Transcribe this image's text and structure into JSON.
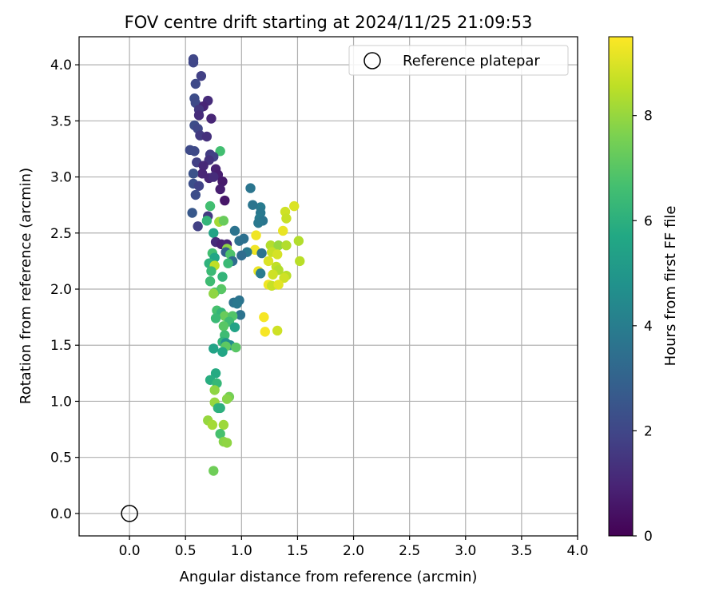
{
  "chart_data": {
    "type": "scatter",
    "title": "FOV centre drift starting at 2024/11/25 21:09:53",
    "xlabel": "Angular distance from reference (arcmin)",
    "ylabel": "Rotation from reference (arcmin)",
    "xlim": [
      -0.45,
      4.0
    ],
    "ylim": [
      -0.2,
      4.25
    ],
    "xticks": [
      "0.0",
      "0.5",
      "1.0",
      "1.5",
      "2.0",
      "2.5",
      "3.0",
      "3.5",
      "4.0"
    ],
    "yticks": [
      "0.0",
      "0.5",
      "1.0",
      "1.5",
      "2.0",
      "2.5",
      "3.0",
      "3.5",
      "4.0"
    ],
    "grid": true,
    "legend": {
      "placement": "top-right",
      "entries": [
        "Reference platepar"
      ]
    },
    "reference_point": {
      "x": 0.0,
      "y": 0.0
    },
    "colorbar": {
      "label": "Hours from first FF file",
      "range": [
        0,
        9.5
      ],
      "ticks": [
        "0",
        "2",
        "4",
        "6",
        "8"
      ],
      "colormap": "viridis"
    },
    "points": [
      {
        "x": 0.57,
        "y": 4.05,
        "h": 2.0
      },
      {
        "x": 0.57,
        "y": 4.02,
        "h": 2.0
      },
      {
        "x": 0.64,
        "y": 3.9,
        "h": 1.8
      },
      {
        "x": 0.59,
        "y": 3.83,
        "h": 2.1
      },
      {
        "x": 0.58,
        "y": 3.7,
        "h": 2.2
      },
      {
        "x": 0.7,
        "y": 3.68,
        "h": 1.2
      },
      {
        "x": 0.59,
        "y": 3.66,
        "h": 2.1
      },
      {
        "x": 0.66,
        "y": 3.63,
        "h": 1.0
      },
      {
        "x": 0.62,
        "y": 3.6,
        "h": 1.5
      },
      {
        "x": 0.62,
        "y": 3.55,
        "h": 1.2
      },
      {
        "x": 0.73,
        "y": 3.52,
        "h": 1.0
      },
      {
        "x": 0.58,
        "y": 3.46,
        "h": 2.2
      },
      {
        "x": 0.61,
        "y": 3.43,
        "h": 2.0
      },
      {
        "x": 0.63,
        "y": 3.37,
        "h": 1.6
      },
      {
        "x": 0.69,
        "y": 3.36,
        "h": 1.3
      },
      {
        "x": 0.81,
        "y": 3.23,
        "h": 6.6
      },
      {
        "x": 0.54,
        "y": 3.24,
        "h": 2.1
      },
      {
        "x": 0.58,
        "y": 3.23,
        "h": 2.1
      },
      {
        "x": 0.72,
        "y": 3.2,
        "h": 1.7
      },
      {
        "x": 0.75,
        "y": 3.18,
        "h": 1.8
      },
      {
        "x": 0.6,
        "y": 3.13,
        "h": 1.8
      },
      {
        "x": 0.71,
        "y": 3.15,
        "h": 1.4
      },
      {
        "x": 0.66,
        "y": 3.1,
        "h": 1.1
      },
      {
        "x": 0.77,
        "y": 3.07,
        "h": 0.9
      },
      {
        "x": 0.65,
        "y": 3.03,
        "h": 1.0
      },
      {
        "x": 0.79,
        "y": 3.02,
        "h": 0.8
      },
      {
        "x": 0.57,
        "y": 3.03,
        "h": 2.4
      },
      {
        "x": 0.71,
        "y": 2.99,
        "h": 1.0
      },
      {
        "x": 0.75,
        "y": 3.0,
        "h": 1.2
      },
      {
        "x": 0.83,
        "y": 2.96,
        "h": 0.7
      },
      {
        "x": 0.57,
        "y": 2.94,
        "h": 2.3
      },
      {
        "x": 0.62,
        "y": 2.92,
        "h": 1.9
      },
      {
        "x": 0.81,
        "y": 2.89,
        "h": 0.8
      },
      {
        "x": 1.08,
        "y": 2.9,
        "h": 3.7
      },
      {
        "x": 0.59,
        "y": 2.84,
        "h": 2.2
      },
      {
        "x": 0.85,
        "y": 2.79,
        "h": 0.6
      },
      {
        "x": 1.17,
        "y": 2.73,
        "h": 3.9
      },
      {
        "x": 1.1,
        "y": 2.75,
        "h": 3.7
      },
      {
        "x": 0.72,
        "y": 2.74,
        "h": 6.6
      },
      {
        "x": 1.47,
        "y": 2.74,
        "h": 9.0
      },
      {
        "x": 0.56,
        "y": 2.68,
        "h": 2.6
      },
      {
        "x": 1.17,
        "y": 2.68,
        "h": 3.8
      },
      {
        "x": 1.39,
        "y": 2.69,
        "h": 8.8
      },
      {
        "x": 0.7,
        "y": 2.65,
        "h": 1.6
      },
      {
        "x": 1.16,
        "y": 2.63,
        "h": 3.9
      },
      {
        "x": 1.4,
        "y": 2.63,
        "h": 8.7
      },
      {
        "x": 0.69,
        "y": 2.61,
        "h": 6.2
      },
      {
        "x": 0.8,
        "y": 2.6,
        "h": 8.2
      },
      {
        "x": 0.84,
        "y": 2.61,
        "h": 7.3
      },
      {
        "x": 1.19,
        "y": 2.61,
        "h": 3.7
      },
      {
        "x": 1.15,
        "y": 2.59,
        "h": 3.8
      },
      {
        "x": 0.61,
        "y": 2.56,
        "h": 1.8
      },
      {
        "x": 1.37,
        "y": 2.52,
        "h": 9.2
      },
      {
        "x": 0.94,
        "y": 2.52,
        "h": 3.6
      },
      {
        "x": 0.75,
        "y": 2.5,
        "h": 5.5
      },
      {
        "x": 1.13,
        "y": 2.48,
        "h": 9.3
      },
      {
        "x": 1.02,
        "y": 2.45,
        "h": 3.5
      },
      {
        "x": 0.98,
        "y": 2.43,
        "h": 3.5
      },
      {
        "x": 1.51,
        "y": 2.43,
        "h": 8.4
      },
      {
        "x": 0.77,
        "y": 2.42,
        "h": 1.2
      },
      {
        "x": 0.82,
        "y": 2.4,
        "h": 0.9
      },
      {
        "x": 0.87,
        "y": 2.4,
        "h": 1.0
      },
      {
        "x": 1.26,
        "y": 2.39,
        "h": 8.4
      },
      {
        "x": 1.33,
        "y": 2.39,
        "h": 8.0
      },
      {
        "x": 1.4,
        "y": 2.39,
        "h": 8.4
      },
      {
        "x": 0.87,
        "y": 2.36,
        "h": 7.9
      },
      {
        "x": 1.12,
        "y": 2.35,
        "h": 9.3
      },
      {
        "x": 0.86,
        "y": 2.33,
        "h": 2.8
      },
      {
        "x": 1.05,
        "y": 2.33,
        "h": 3.8
      },
      {
        "x": 1.27,
        "y": 2.33,
        "h": 8.7
      },
      {
        "x": 0.74,
        "y": 2.32,
        "h": 6.6
      },
      {
        "x": 0.9,
        "y": 2.31,
        "h": 6.8
      },
      {
        "x": 1.0,
        "y": 2.3,
        "h": 3.4
      },
      {
        "x": 1.18,
        "y": 2.32,
        "h": 3.6
      },
      {
        "x": 1.32,
        "y": 2.31,
        "h": 8.9
      },
      {
        "x": 0.76,
        "y": 2.28,
        "h": 5.6
      },
      {
        "x": 0.92,
        "y": 2.25,
        "h": 3.4
      },
      {
        "x": 1.24,
        "y": 2.25,
        "h": 9.0
      },
      {
        "x": 1.52,
        "y": 2.25,
        "h": 8.5
      },
      {
        "x": 0.71,
        "y": 2.23,
        "h": 6.1
      },
      {
        "x": 0.88,
        "y": 2.23,
        "h": 6.4
      },
      {
        "x": 0.76,
        "y": 2.21,
        "h": 8.6
      },
      {
        "x": 1.31,
        "y": 2.2,
        "h": 8.6
      },
      {
        "x": 1.33,
        "y": 2.17,
        "h": 8.4
      },
      {
        "x": 1.15,
        "y": 2.16,
        "h": 9.2
      },
      {
        "x": 0.73,
        "y": 2.16,
        "h": 6.4
      },
      {
        "x": 1.17,
        "y": 2.14,
        "h": 3.9
      },
      {
        "x": 1.28,
        "y": 2.13,
        "h": 8.8
      },
      {
        "x": 1.4,
        "y": 2.12,
        "h": 8.5
      },
      {
        "x": 0.83,
        "y": 2.11,
        "h": 6.2
      },
      {
        "x": 1.38,
        "y": 2.1,
        "h": 8.8
      },
      {
        "x": 0.72,
        "y": 2.07,
        "h": 6.5
      },
      {
        "x": 1.24,
        "y": 2.04,
        "h": 9.3
      },
      {
        "x": 1.27,
        "y": 2.03,
        "h": 8.7
      },
      {
        "x": 1.33,
        "y": 2.04,
        "h": 9.1
      },
      {
        "x": 0.82,
        "y": 2.0,
        "h": 7.0
      },
      {
        "x": 0.76,
        "y": 1.97,
        "h": 6.8
      },
      {
        "x": 0.75,
        "y": 1.96,
        "h": 7.9
      },
      {
        "x": 0.98,
        "y": 1.9,
        "h": 3.6
      },
      {
        "x": 0.93,
        "y": 1.88,
        "h": 3.6
      },
      {
        "x": 0.96,
        "y": 1.87,
        "h": 3.8
      },
      {
        "x": 0.78,
        "y": 1.81,
        "h": 6.7
      },
      {
        "x": 0.82,
        "y": 1.79,
        "h": 6.2
      },
      {
        "x": 0.99,
        "y": 1.77,
        "h": 3.6
      },
      {
        "x": 0.85,
        "y": 1.76,
        "h": 7.3
      },
      {
        "x": 0.92,
        "y": 1.76,
        "h": 6.9
      },
      {
        "x": 0.77,
        "y": 1.74,
        "h": 6.4
      },
      {
        "x": 1.2,
        "y": 1.75,
        "h": 9.4
      },
      {
        "x": 0.89,
        "y": 1.71,
        "h": 6.5
      },
      {
        "x": 0.84,
        "y": 1.67,
        "h": 7.0
      },
      {
        "x": 0.94,
        "y": 1.66,
        "h": 5.5
      },
      {
        "x": 1.32,
        "y": 1.63,
        "h": 8.8
      },
      {
        "x": 1.21,
        "y": 1.62,
        "h": 9.4
      },
      {
        "x": 0.85,
        "y": 1.59,
        "h": 6.5
      },
      {
        "x": 0.83,
        "y": 1.53,
        "h": 6.2
      },
      {
        "x": 0.86,
        "y": 1.52,
        "h": 4.8
      },
      {
        "x": 0.9,
        "y": 1.5,
        "h": 4.6
      },
      {
        "x": 0.86,
        "y": 1.49,
        "h": 7.1
      },
      {
        "x": 0.95,
        "y": 1.48,
        "h": 7.0
      },
      {
        "x": 0.75,
        "y": 1.47,
        "h": 5.5
      },
      {
        "x": 0.83,
        "y": 1.44,
        "h": 5.6
      },
      {
        "x": 0.77,
        "y": 1.25,
        "h": 5.8
      },
      {
        "x": 0.72,
        "y": 1.19,
        "h": 5.9
      },
      {
        "x": 0.78,
        "y": 1.16,
        "h": 6.3
      },
      {
        "x": 0.76,
        "y": 1.1,
        "h": 7.9
      },
      {
        "x": 0.89,
        "y": 1.04,
        "h": 7.5
      },
      {
        "x": 0.87,
        "y": 1.02,
        "h": 7.8
      },
      {
        "x": 0.76,
        "y": 0.99,
        "h": 8.0
      },
      {
        "x": 0.79,
        "y": 0.94,
        "h": 6.1
      },
      {
        "x": 0.81,
        "y": 0.94,
        "h": 6.0
      },
      {
        "x": 0.7,
        "y": 0.83,
        "h": 8.0
      },
      {
        "x": 0.74,
        "y": 0.79,
        "h": 8.2
      },
      {
        "x": 0.84,
        "y": 0.79,
        "h": 8.1
      },
      {
        "x": 0.81,
        "y": 0.71,
        "h": 6.7
      },
      {
        "x": 0.84,
        "y": 0.64,
        "h": 7.8
      },
      {
        "x": 0.87,
        "y": 0.63,
        "h": 7.9
      },
      {
        "x": 0.75,
        "y": 0.38,
        "h": 7.4
      }
    ]
  }
}
